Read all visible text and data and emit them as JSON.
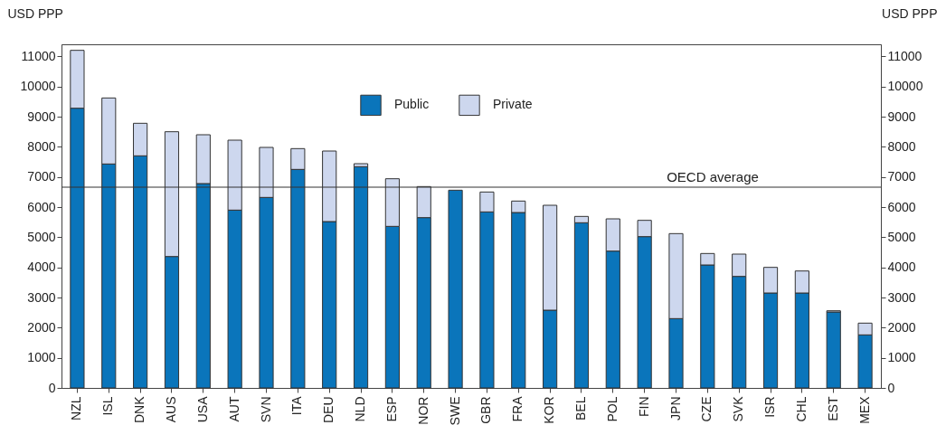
{
  "chart_data": {
    "type": "bar",
    "stacked": true,
    "ylabel": "USD PPP",
    "y2label": "USD PPP",
    "categories": [
      "NZL",
      "ISL",
      "DNK",
      "AUS",
      "USA",
      "AUT",
      "SVN",
      "ITA",
      "DEU",
      "NLD",
      "ESP",
      "NOR",
      "SWE",
      "GBR",
      "FRA",
      "KOR",
      "BEL",
      "POL",
      "FIN",
      "JPN",
      "CZE",
      "SVK",
      "ISR",
      "CHL",
      "EST",
      "MEX"
    ],
    "series": [
      {
        "name": "Public",
        "color": "#0a75bb",
        "values": [
          9280,
          7430,
          7700,
          4360,
          6780,
          5900,
          6320,
          7250,
          5520,
          7340,
          5360,
          5650,
          6560,
          5840,
          5820,
          2580,
          5480,
          4540,
          5020,
          2300,
          4080,
          3700,
          3150,
          3150,
          2520,
          1760
        ]
      },
      {
        "name": "Private",
        "color": "#cdd7ee",
        "values": [
          1920,
          2190,
          1080,
          4140,
          1620,
          2320,
          1660,
          690,
          2340,
          100,
          1580,
          1030,
          null,
          660,
          380,
          3480,
          210,
          1070,
          540,
          2820,
          380,
          740,
          850,
          730,
          40,
          390
        ]
      }
    ],
    "ylim": [
      0,
      11400
    ],
    "yticks": [
      0,
      1000,
      2000,
      3000,
      4000,
      5000,
      6000,
      7000,
      8000,
      9000,
      10000,
      11000
    ],
    "y2lim": [
      0,
      11400
    ],
    "y2ticks": [
      0,
      1000,
      2000,
      3000,
      4000,
      5000,
      6000,
      7000,
      8000,
      9000,
      10000,
      11000
    ],
    "ref_lines": [
      {
        "axis": "y",
        "value": 6660,
        "label": "OECD average"
      }
    ],
    "grid": false,
    "legend": "top"
  }
}
